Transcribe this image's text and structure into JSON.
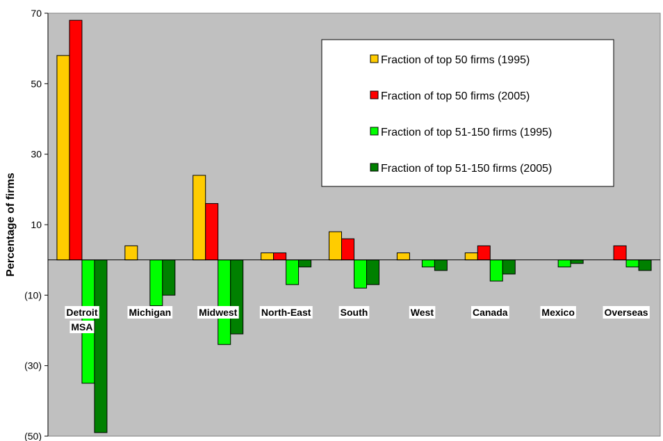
{
  "chart_data": {
    "type": "bar",
    "title": "",
    "xlabel": "",
    "ylabel": "Percentage of firms",
    "ylim": [
      -50,
      70
    ],
    "yticks": [
      70,
      50,
      30,
      10,
      -10,
      -30,
      -50
    ],
    "ytick_labels": [
      "70",
      "50",
      "30",
      "10",
      "(10)",
      "(30)",
      "(50)"
    ],
    "categories": [
      "Detroit MSA",
      "Michigan",
      "Midwest",
      "North-East",
      "South",
      "West",
      "Canada",
      "Mexico",
      "Overseas"
    ],
    "category_lines": [
      [
        "Detroit",
        "MSA"
      ],
      [
        "Michigan"
      ],
      [
        "Midwest"
      ],
      [
        "North-East"
      ],
      [
        "South"
      ],
      [
        "West"
      ],
      [
        "Canada"
      ],
      [
        "Mexico"
      ],
      [
        "Overseas"
      ]
    ],
    "series": [
      {
        "name": "Fraction of top 50 firms (1995)",
        "color": "#FFCC00",
        "values": [
          58,
          4,
          24,
          2,
          8,
          2,
          2,
          0,
          0
        ]
      },
      {
        "name": "Fraction of top 50 firms (2005)",
        "color": "#FF0000",
        "values": [
          68,
          0,
          16,
          2,
          6,
          0,
          4,
          0,
          4
        ]
      },
      {
        "name": "Fraction of top 51-150 firms (1995)",
        "color": "#00FF00",
        "values": [
          -35,
          -13,
          -24,
          -7,
          -8,
          -2,
          -6,
          -2,
          -2
        ]
      },
      {
        "name": "Fraction of top 51-150 firms (2005)",
        "color": "#008000",
        "values": [
          -49,
          -10,
          -21,
          -2,
          -7,
          -3,
          -4,
          -1,
          -3
        ]
      }
    ],
    "plot_background": "#C0C0C0",
    "grid": false,
    "legend_position": "top-right"
  }
}
